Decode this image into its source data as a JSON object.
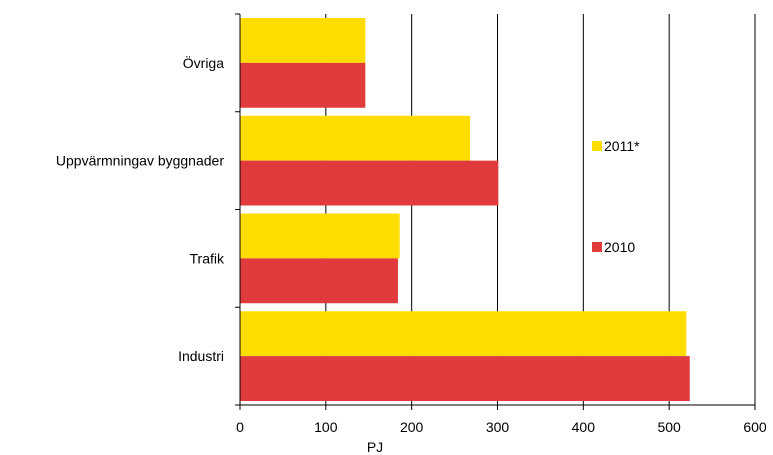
{
  "chart_data": {
    "type": "bar",
    "orientation": "horizontal",
    "categories": [
      "Övriga",
      "Uppvärmningav byggnader",
      "Trafik",
      "Industri"
    ],
    "series": [
      {
        "name": "2011*",
        "color": "#ffdd00",
        "values": [
          146,
          268,
          186,
          520
        ]
      },
      {
        "name": "2010",
        "color": "#e03a3c",
        "values": [
          146,
          301,
          184,
          524
        ]
      }
    ],
    "xlabel": "PJ",
    "ylabel": "",
    "xlim": [
      0,
      600
    ],
    "xticks": [
      "0",
      "100",
      "200",
      "300",
      "400",
      "500",
      "600"
    ],
    "grid": true,
    "legend_position": "right"
  }
}
